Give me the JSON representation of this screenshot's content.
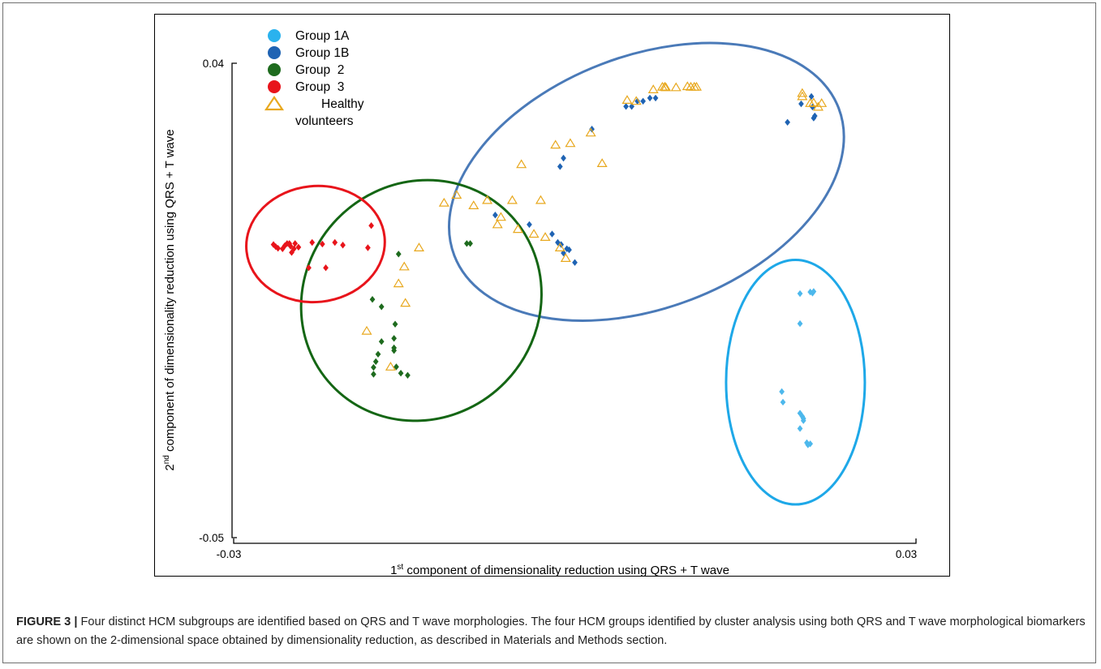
{
  "chart_data": {
    "type": "scatter",
    "title": "",
    "xlabel": {
      "prefix": "1",
      "sup": "st",
      "rest": " component of dimensionality reduction using QRS + T wave"
    },
    "ylabel": {
      "prefix": "2",
      "sup": "nd",
      "rest": " component of dimensionality reduction using QRS + T wave"
    },
    "xlim": [
      -0.03,
      0.03
    ],
    "ylim": [
      -0.05,
      0.04
    ],
    "xticks": [
      {
        "value": -0.03,
        "label": "-0.03"
      },
      {
        "value": 0.03,
        "label": "0.03"
      }
    ],
    "yticks": [
      {
        "value": 0.04,
        "label": "0.04"
      },
      {
        "value": -0.05,
        "label": "-0.05"
      }
    ],
    "grid": false,
    "legend_position": "top-left",
    "series": [
      {
        "name": "Group 1A",
        "color": "#4db8ec",
        "marker": "diamond",
        "points": [
          [
            0.0198,
            -0.0037
          ],
          [
            0.0207,
            -0.0034
          ],
          [
            0.0209,
            -0.0036
          ],
          [
            0.021,
            -0.0033
          ],
          [
            0.0198,
            -0.0094
          ],
          [
            0.0182,
            -0.0223
          ],
          [
            0.0183,
            -0.0243
          ],
          [
            0.0198,
            -0.0264
          ],
          [
            0.02,
            -0.027
          ],
          [
            0.0201,
            -0.0274
          ],
          [
            0.0201,
            -0.0278
          ],
          [
            0.0198,
            -0.0293
          ],
          [
            0.0204,
            -0.032
          ],
          [
            0.0205,
            -0.0324
          ],
          [
            0.0207,
            -0.0322
          ]
        ]
      },
      {
        "name": "Group 1B",
        "color": "#1f63b3",
        "marker": "diamond",
        "points": [
          [
            0.0045,
            0.0318
          ],
          [
            0.005,
            0.0318
          ],
          [
            0.0055,
            0.0328
          ],
          [
            0.006,
            0.0328
          ],
          [
            0.0066,
            0.0334
          ],
          [
            0.0071,
            0.0334
          ],
          [
            0.0187,
            0.0288
          ],
          [
            0.0199,
            0.0323
          ],
          [
            0.0208,
            0.0337
          ],
          [
            0.0209,
            0.0317
          ],
          [
            0.021,
            0.0296
          ],
          [
            0.0211,
            0.03
          ],
          [
            -0.007,
            0.0112
          ],
          [
            -0.004,
            0.0094
          ],
          [
            -0.002,
            0.0076
          ],
          [
            -0.0015,
            0.006
          ],
          [
            -0.0012,
            0.0056
          ],
          [
            -0.0007,
            0.0048
          ],
          [
            -0.0005,
            0.0046
          ],
          [
            0.0,
            0.0022
          ],
          [
            -0.001,
            0.004
          ],
          [
            -0.0013,
            0.0204
          ],
          [
            -0.001,
            0.022
          ],
          [
            0.0015,
            0.0275
          ]
        ]
      },
      {
        "name": "Group  2",
        "color": "#1e6b1e",
        "marker": "diamond",
        "points": [
          [
            -0.0155,
            0.0038
          ],
          [
            -0.0178,
            -0.0048
          ],
          [
            -0.017,
            -0.0062
          ],
          [
            -0.0158,
            -0.0095
          ],
          [
            -0.0159,
            -0.0122
          ],
          [
            -0.0159,
            -0.014
          ],
          [
            -0.0177,
            -0.0177
          ],
          [
            -0.0177,
            -0.019
          ],
          [
            -0.0157,
            -0.0176
          ],
          [
            -0.0153,
            -0.0188
          ],
          [
            -0.0147,
            -0.0192
          ],
          [
            -0.0159,
            -0.0145
          ],
          [
            -0.0173,
            -0.0152
          ],
          [
            -0.0175,
            -0.0166
          ],
          [
            -0.017,
            -0.0128
          ],
          [
            -0.0095,
            0.0058
          ],
          [
            -0.0092,
            0.0058
          ]
        ]
      },
      {
        "name": "Group  3",
        "color": "#e8141b",
        "marker": "diamond",
        "points": [
          [
            -0.0263,
            0.0052
          ],
          [
            -0.0261,
            0.0049
          ],
          [
            -0.0257,
            0.0048
          ],
          [
            -0.0255,
            0.0054
          ],
          [
            -0.0253,
            0.0058
          ],
          [
            -0.0251,
            0.0058
          ],
          [
            -0.025,
            0.0053
          ],
          [
            -0.0247,
            0.0048
          ],
          [
            -0.0249,
            0.0041
          ],
          [
            -0.0243,
            0.0051
          ],
          [
            -0.0246,
            0.0058
          ],
          [
            -0.0231,
            0.006
          ],
          [
            -0.0222,
            0.0057
          ],
          [
            -0.0211,
            0.006
          ],
          [
            -0.0204,
            0.0055
          ],
          [
            -0.0182,
            0.005
          ],
          [
            -0.0179,
            0.0092
          ],
          [
            -0.0219,
            0.0012
          ],
          [
            -0.0234,
            0.0012
          ],
          [
            -0.0265,
            0.0056
          ]
        ]
      },
      {
        "name": "Healthy volunteers",
        "color": "#e8a81e",
        "marker": "triangle-open",
        "points": [
          [
            0.0046,
            0.033
          ],
          [
            0.0054,
            0.0328
          ],
          [
            0.0069,
            0.035
          ],
          [
            0.0077,
            0.0355
          ],
          [
            0.008,
            0.0354
          ],
          [
            0.0079,
            0.0355
          ],
          [
            0.0089,
            0.0354
          ],
          [
            0.0099,
            0.0356
          ],
          [
            0.0102,
            0.0355
          ],
          [
            0.0105,
            0.0355
          ],
          [
            0.0107,
            0.0355
          ],
          [
            0.02,
            0.0343
          ],
          [
            0.02,
            0.0337
          ],
          [
            0.0207,
            0.0324
          ],
          [
            0.021,
            0.0325
          ],
          [
            0.0214,
            0.0317
          ],
          [
            0.0217,
            0.0324
          ],
          [
            0.0024,
            0.021
          ],
          [
            0.0014,
            0.0268
          ],
          [
            -0.0004,
            0.0248
          ],
          [
            -0.003,
            0.014
          ],
          [
            -0.0055,
            0.014
          ],
          [
            -0.0065,
            0.0108
          ],
          [
            -0.0068,
            0.0094
          ],
          [
            -0.0077,
            0.014
          ],
          [
            -0.0089,
            0.013
          ],
          [
            -0.0104,
            0.015
          ],
          [
            -0.0115,
            0.0135
          ],
          [
            -0.0017,
            0.0245
          ],
          [
            -0.0047,
            0.0208
          ],
          [
            -0.005,
            0.0085
          ],
          [
            -0.0036,
            0.0076
          ],
          [
            -0.0026,
            0.007
          ],
          [
            -0.0013,
            0.005
          ],
          [
            -0.0008,
            0.003
          ],
          [
            -0.0137,
            0.005
          ],
          [
            -0.015,
            0.0014
          ],
          [
            -0.0155,
            -0.0018
          ],
          [
            -0.0149,
            -0.0055
          ],
          [
            -0.0183,
            -0.0108
          ],
          [
            -0.0162,
            -0.0176
          ]
        ]
      }
    ],
    "ellipses": [
      {
        "series": "Group 1B",
        "color": "#4a7ab8",
        "cx": 0.0063,
        "cy": 0.0175,
        "rx": 0.0181,
        "ry": 0.0239,
        "angle_deg": -21
      },
      {
        "series": "Group  2",
        "color": "#146614",
        "cx": -0.0135,
        "cy": -0.005,
        "rx": 0.0103,
        "ry": 0.0234,
        "angle_deg": 44
      },
      {
        "series": "Group  3",
        "color": "#e8141b",
        "cx": -0.0228,
        "cy": 0.0057,
        "rx": 0.0061,
        "ry": 0.011,
        "angle_deg": -6
      },
      {
        "series": "Group 1A",
        "color": "#1ea8e8",
        "cx": 0.0194,
        "cy": -0.0205,
        "rx": 0.0061,
        "ry": 0.0232,
        "angle_deg": 0
      }
    ]
  },
  "legend": [
    {
      "label_lines": [
        "Group 1A"
      ],
      "color": "#2ab2ee",
      "marker": "circle"
    },
    {
      "label_lines": [
        "Group 1B"
      ],
      "color": "#1f63b3",
      "marker": "circle"
    },
    {
      "label_lines": [
        "Group  2"
      ],
      "color": "#1e6b1e",
      "marker": "circle"
    },
    {
      "label_lines": [
        "Group  3"
      ],
      "color": "#e8141b",
      "marker": "circle"
    },
    {
      "label_lines": [
        "Healthy",
        "volunteers"
      ],
      "color": "#e8a81e",
      "marker": "triangle-open"
    }
  ],
  "caption": {
    "label": "FIGURE 3 |",
    "text": " Four distinct HCM subgroups are identified based on QRS and T wave morphologies. The four HCM groups identified by cluster analysis using both QRS and T wave morphological biomarkers are shown on the 2-dimensional space obtained by dimensionality reduction, as described in Materials and Methods section."
  }
}
